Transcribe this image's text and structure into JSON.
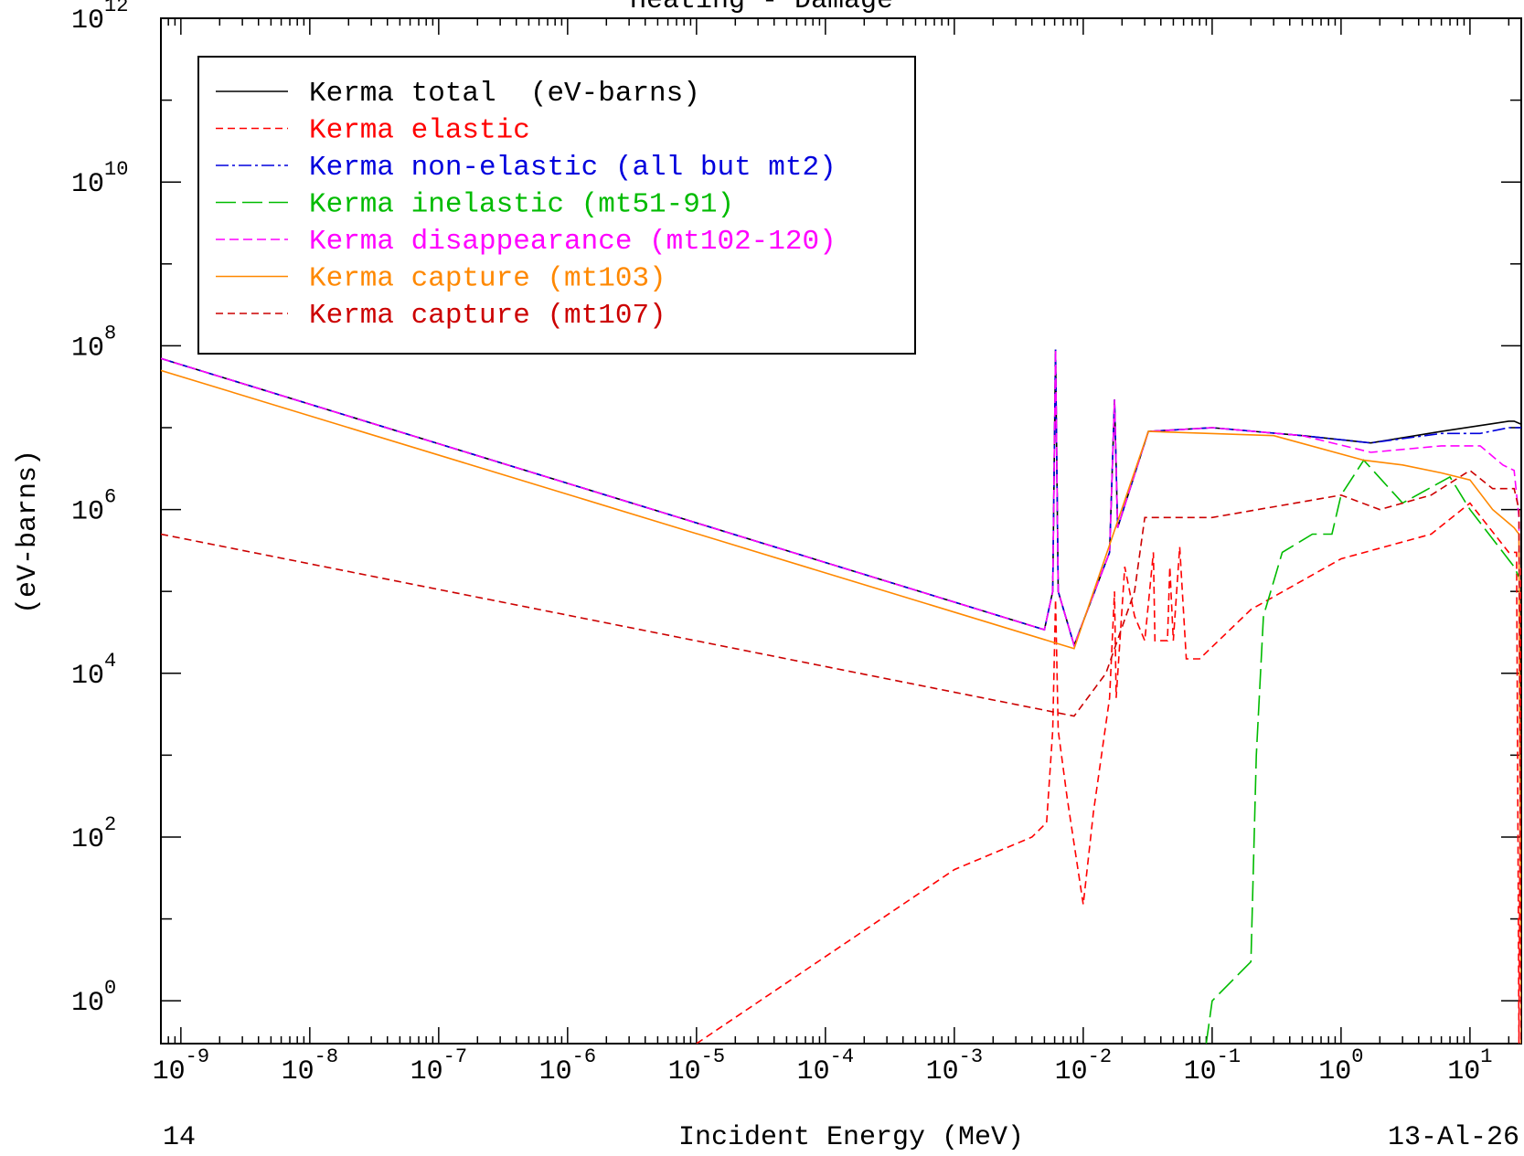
{
  "chart_data": {
    "type": "line",
    "title": "Heating - Damage",
    "xlabel": "Incident Energy (MeV)",
    "ylabel": "(eV-barns)",
    "x_scale": "log",
    "y_scale": "log",
    "xlim": [
      7e-10,
      25
    ],
    "ylim": [
      0.3,
      1000000000000.0
    ],
    "grid": false,
    "legend_position": "top-left",
    "footer_left": "14",
    "footer_right": "13-Al-26",
    "x_ticks": [
      {
        "base": "10",
        "exp": "-9",
        "value": 1e-09
      },
      {
        "base": "10",
        "exp": "-8",
        "value": 1e-08
      },
      {
        "base": "10",
        "exp": "-7",
        "value": 1e-07
      },
      {
        "base": "10",
        "exp": "-6",
        "value": 1e-06
      },
      {
        "base": "10",
        "exp": "-5",
        "value": 1e-05
      },
      {
        "base": "10",
        "exp": "-4",
        "value": 0.0001
      },
      {
        "base": "10",
        "exp": "-3",
        "value": 0.001
      },
      {
        "base": "10",
        "exp": "-2",
        "value": 0.01
      },
      {
        "base": "10",
        "exp": "-1",
        "value": 0.1
      },
      {
        "base": "10",
        "exp": "0",
        "value": 1
      },
      {
        "base": "10",
        "exp": "1",
        "value": 10
      }
    ],
    "y_ticks": [
      {
        "base": "10",
        "exp": "0",
        "value": 1
      },
      {
        "base": "10",
        "exp": "2",
        "value": 100
      },
      {
        "base": "10",
        "exp": "4",
        "value": 10000
      },
      {
        "base": "10",
        "exp": "6",
        "value": 1000000
      },
      {
        "base": "10",
        "exp": "8",
        "value": 100000000
      },
      {
        "base": "10",
        "exp": "10",
        "value": 10000000000
      },
      {
        "base": "10",
        "exp": "12",
        "value": 1000000000000
      }
    ],
    "series": [
      {
        "name": "Kerma total  (eV-barns)",
        "color": "#000000",
        "dash": "",
        "points": [
          [
            7e-10,
            70000000.0
          ],
          [
            0.005,
            34000.0
          ],
          [
            0.0058,
            100000.0
          ],
          [
            0.0061,
            90000000.0
          ],
          [
            0.0064,
            100000.0
          ],
          [
            0.0085,
            22000.0
          ],
          [
            0.016,
            300000.0
          ],
          [
            0.0175,
            22000000.0
          ],
          [
            0.0185,
            600000.0
          ],
          [
            0.032,
            9000000.0
          ],
          [
            0.1,
            10000000.0
          ],
          [
            0.5,
            8000000.0
          ],
          [
            1.7,
            6500000.0
          ],
          [
            6,
            9000000.0
          ],
          [
            20,
            12000000.0
          ],
          [
            22,
            12000000.0
          ],
          [
            25,
            11000000.0
          ]
        ]
      },
      {
        "name": "Kerma elastic",
        "color": "#ff0000",
        "dash": "8,5",
        "points": [
          [
            1e-05,
            0.3
          ],
          [
            0.001,
            40
          ],
          [
            0.004,
            100
          ],
          [
            0.0052,
            150
          ],
          [
            0.0058,
            2000
          ],
          [
            0.0061,
            80000.0
          ],
          [
            0.0064,
            2000
          ],
          [
            0.0075,
            300
          ],
          [
            0.01,
            15
          ],
          [
            0.012,
            200
          ],
          [
            0.016,
            5000.0
          ],
          [
            0.0175,
            100000.0
          ],
          [
            0.018,
            5000.0
          ],
          [
            0.021,
            200000.0
          ],
          [
            0.025,
            50000.0
          ],
          [
            0.03,
            25000.0
          ],
          [
            0.035,
            300000.0
          ],
          [
            0.036,
            25000.0
          ],
          [
            0.045,
            25000.0
          ],
          [
            0.047,
            200000.0
          ],
          [
            0.05,
            25000.0
          ],
          [
            0.056,
            350000.0
          ],
          [
            0.063,
            15000.0
          ],
          [
            0.08,
            15000.0
          ],
          [
            0.2,
            60000.0
          ],
          [
            1,
            250000.0
          ],
          [
            5,
            500000.0
          ],
          [
            10,
            1200000.0
          ],
          [
            20,
            300000.0
          ],
          [
            23,
            300000.0
          ],
          [
            24,
            0.3
          ],
          [
            25,
            220000.0
          ]
        ]
      },
      {
        "name": "Kerma non-elastic (all but mt2)",
        "color": "#0000dd",
        "dash": "14,4,3,4",
        "points": [
          [
            7e-10,
            70000000.0
          ],
          [
            0.005,
            34000.0
          ],
          [
            0.0058,
            100000.0
          ],
          [
            0.0061,
            90000000.0
          ],
          [
            0.0064,
            100000.0
          ],
          [
            0.0085,
            22000.0
          ],
          [
            0.016,
            300000.0
          ],
          [
            0.0175,
            22000000.0
          ],
          [
            0.0185,
            600000.0
          ],
          [
            0.032,
            9000000.0
          ],
          [
            0.1,
            10000000.0
          ],
          [
            0.5,
            8000000.0
          ],
          [
            1.7,
            6500000.0
          ],
          [
            6,
            8500000.0
          ],
          [
            12,
            8500000.0
          ],
          [
            20,
            10000000.0
          ],
          [
            22,
            10000000.0
          ],
          [
            25,
            10000000.0
          ]
        ]
      },
      {
        "name": "Kerma inelastic (mt51-91)",
        "color": "#00bb00",
        "dash": "22,7",
        "points": [
          [
            0.09,
            0.3
          ],
          [
            0.1,
            1
          ],
          [
            0.2,
            3
          ],
          [
            0.22,
            1000.0
          ],
          [
            0.25,
            50000.0
          ],
          [
            0.35,
            300000.0
          ],
          [
            0.6,
            500000.0
          ],
          [
            0.85,
            500000.0
          ],
          [
            1,
            1500000.0
          ],
          [
            1.5,
            4000000.0
          ],
          [
            3,
            1200000.0
          ],
          [
            7,
            2500000.0
          ],
          [
            10,
            1000000.0
          ],
          [
            22,
            200000.0
          ],
          [
            24,
            150000.0
          ]
        ]
      },
      {
        "name": "Kerma disappearance (mt102-120)",
        "color": "#ff00ff",
        "dash": "10,5",
        "points": [
          [
            7e-10,
            70000000.0
          ],
          [
            0.005,
            34000.0
          ],
          [
            0.0058,
            100000.0
          ],
          [
            0.0061,
            90000000.0
          ],
          [
            0.0064,
            100000.0
          ],
          [
            0.0085,
            22000.0
          ],
          [
            0.016,
            300000.0
          ],
          [
            0.0175,
            22000000.0
          ],
          [
            0.0185,
            600000.0
          ],
          [
            0.032,
            9000000.0
          ],
          [
            0.1,
            10000000.0
          ],
          [
            0.5,
            8000000.0
          ],
          [
            1.7,
            5000000.0
          ],
          [
            6,
            6000000.0
          ],
          [
            12,
            6000000.0
          ],
          [
            18,
            3500000.0
          ],
          [
            22,
            3000000.0
          ],
          [
            24,
            800000.0
          ],
          [
            25,
            0.3
          ]
        ]
      },
      {
        "name": "Kerma capture (mt103)",
        "color": "#ff8800",
        "dash": "",
        "points": [
          [
            7e-10,
            50000000.0
          ],
          [
            0.0085,
            20000.0
          ],
          [
            0.032,
            9000000.0
          ],
          [
            0.3,
            8000000.0
          ],
          [
            1.5,
            4000000.0
          ],
          [
            3,
            3500000.0
          ],
          [
            6,
            2800000.0
          ],
          [
            10,
            2300000.0
          ],
          [
            15,
            1000000.0
          ],
          [
            22,
            600000.0
          ],
          [
            24,
            500000.0
          ],
          [
            25,
            0.3
          ]
        ]
      },
      {
        "name": "Kerma capture (mt107)",
        "color": "#cc0000",
        "dash": "8,5",
        "points": [
          [
            7e-10,
            500000.0
          ],
          [
            0.0085,
            3000.0
          ],
          [
            0.015,
            10000.0
          ],
          [
            0.025,
            100000.0
          ],
          [
            0.03,
            800000.0
          ],
          [
            0.1,
            800000.0
          ],
          [
            1,
            1500000.0
          ],
          [
            2,
            1000000.0
          ],
          [
            5,
            1500000.0
          ],
          [
            10,
            3000000.0
          ],
          [
            15,
            1800000.0
          ],
          [
            22,
            1800000.0
          ],
          [
            24,
            1000000.0
          ],
          [
            25,
            0.3
          ]
        ]
      }
    ]
  }
}
